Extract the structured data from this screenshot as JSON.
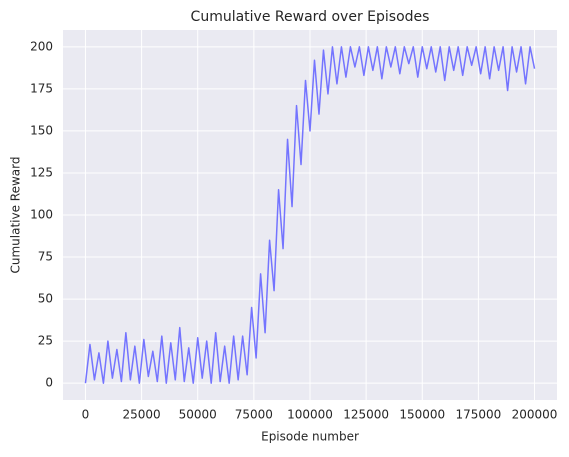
{
  "chart_data": {
    "type": "line",
    "title": "Cumulative Reward over Episodes",
    "x_label": "Episode number",
    "y_label": "Cumulative Reward",
    "x": [
      0,
      2000,
      4000,
      6000,
      8000,
      10000,
      12000,
      14000,
      16000,
      18000,
      20000,
      22000,
      24000,
      26000,
      28000,
      30000,
      32000,
      34000,
      36000,
      38000,
      40000,
      42000,
      44000,
      46000,
      48000,
      50000,
      52000,
      54000,
      56000,
      58000,
      60000,
      62000,
      64000,
      66000,
      68000,
      70000,
      72000,
      74000,
      76000,
      78000,
      80000,
      82000,
      84000,
      86000,
      88000,
      90000,
      92000,
      94000,
      96000,
      98000,
      100000,
      102000,
      104000,
      106000,
      108000,
      110000,
      112000,
      114000,
      116000,
      118000,
      120000,
      122000,
      124000,
      126000,
      128000,
      130000,
      132000,
      134000,
      136000,
      138000,
      140000,
      142000,
      144000,
      146000,
      148000,
      150000,
      152000,
      154000,
      156000,
      158000,
      160000,
      162000,
      164000,
      166000,
      168000,
      170000,
      172000,
      174000,
      176000,
      178000,
      180000,
      182000,
      184000,
      186000,
      188000,
      190000,
      192000,
      194000,
      196000,
      198000,
      200000
    ],
    "values": [
      0,
      23,
      2,
      18,
      0,
      25,
      3,
      20,
      1,
      30,
      2,
      22,
      0,
      26,
      4,
      19,
      1,
      28,
      0,
      24,
      2,
      33,
      1,
      21,
      0,
      27,
      3,
      25,
      0,
      30,
      1,
      22,
      0,
      28,
      2,
      28,
      5,
      45,
      15,
      65,
      30,
      85,
      55,
      115,
      80,
      145,
      105,
      165,
      130,
      180,
      150,
      192,
      160,
      198,
      172,
      200,
      178,
      200,
      182,
      200,
      188,
      200,
      183,
      200,
      186,
      200,
      181,
      200,
      188,
      200,
      184,
      200,
      190,
      200,
      182,
      200,
      187,
      200,
      185,
      200,
      180,
      200,
      186,
      200,
      183,
      200,
      189,
      200,
      184,
      200,
      181,
      200,
      186,
      200,
      174,
      200,
      185,
      200,
      178,
      200,
      187
    ],
    "color": "#7474ff",
    "xlim": [
      -10000,
      210000
    ],
    "xticks": [
      0,
      25000,
      50000,
      75000,
      100000,
      125000,
      150000,
      175000,
      200000
    ],
    "ylim": [
      -10,
      210
    ],
    "yticks": [
      0,
      25,
      50,
      75,
      100,
      125,
      150,
      175,
      200
    ],
    "grid": true
  }
}
